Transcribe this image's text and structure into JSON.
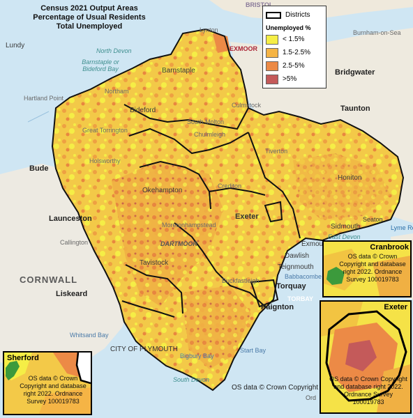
{
  "title": {
    "line1": "Census 2021 Output Areas",
    "line2": "Percentage of Usual Residents",
    "line3": "Total Unemployed"
  },
  "legend": {
    "districts_label": "Districts",
    "unemployed_label": "Unemployed %",
    "classes": [
      {
        "label": "< 1.5%",
        "color": "#f5ee46"
      },
      {
        "label": "1.5-2.5%",
        "color": "#f5b445"
      },
      {
        "label": "2.5-5%",
        "color": "#ec8a46"
      },
      {
        "label": ">5%",
        "color": "#c45a5a"
      }
    ]
  },
  "places": {
    "lundy": "Lundy",
    "lynton": "Lynton",
    "exmoor": "EXMOOR",
    "north_devon": "North Devon",
    "barnstaple_bay": "Barnstaple or Bideford Bay",
    "hartland": "Hartland Point",
    "barnstaple": "Barnstaple",
    "northam": "Northam",
    "bideford": "Bideford",
    "bude": "Bude",
    "launceston": "Launceston",
    "okehampton": "Okehampton",
    "tavistock": "Tavistock",
    "dartmoor": "DARTMOOR",
    "exeter": "Exeter",
    "honiton": "Honiton",
    "sidmouth": "Sidmouth",
    "exmouth": "Exmouth",
    "dawlish": "Dawlish",
    "teignmouth": "Teignmouth",
    "torquay": "Torquay",
    "paignton": "Paignton",
    "torbay": "TORBAY",
    "plymouth": "CITY OF PLYMOUTH",
    "start_bay": "Start Bay",
    "south_devon": "South Devon",
    "bigbury_bay": "Bigbury Bay",
    "liskeard": "Liskeard",
    "cornwall": "CORNWALL",
    "callington": "Callington",
    "bridgwater": "Bridgwater",
    "taunton": "Taunton",
    "burnham": "Burnham-on-Sea",
    "bristol": "BRISTOL",
    "culmstock": "Culmstock",
    "chulmleigh": "Chulmleigh",
    "south_molton": "South Molton",
    "tiverton": "Tiverton",
    "crediton": "Crediton",
    "lyme": "Lyme Re",
    "seaton": "Seaton",
    "east_devon": "East Devon",
    "moretonhampstead": "Moretonhampstead",
    "babbacombe": "Babbacombe Bay",
    "buckfastleigh": "Buckfastleigh",
    "holsworthy": "Holsworthy",
    "great_torrington": "Great Torrington",
    "whitsand": "Whitsand Bay"
  },
  "insets": {
    "sherford": {
      "name": "Sherford",
      "copyright": "OS data © Crown Copyright and database right 2022. Ordnance Survey 100019783"
    },
    "cranbrook": {
      "name": "Cranbrook",
      "copyright": "OS data © Crown Copyright and database right 2022. Ordnance Survey 100019783"
    },
    "exeter": {
      "name": "Exeter",
      "copyright": "OS data © Crown Copyright and database right 2022. Ordnance Survey 100019783"
    }
  },
  "footer": {
    "main_copyright": "OS data © Crown Copyright",
    "ordnance": "Ord"
  }
}
